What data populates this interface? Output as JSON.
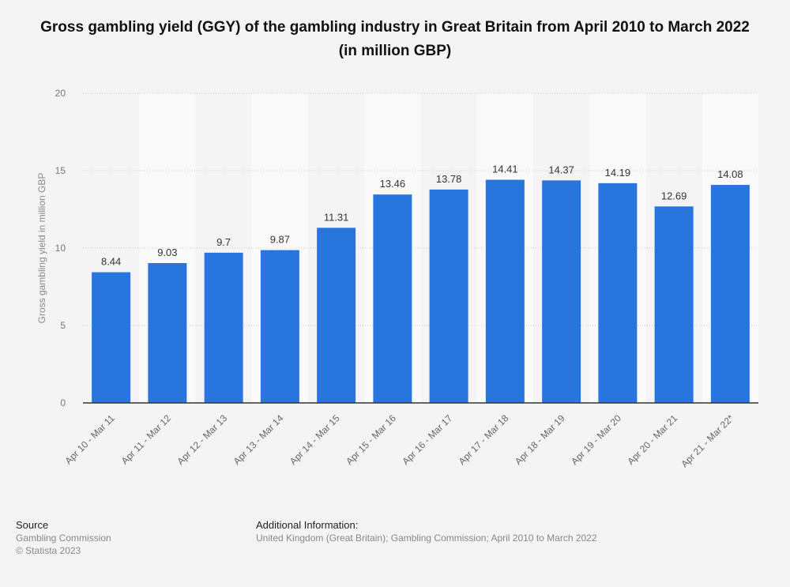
{
  "title": "Gross gambling yield (GGY) of the gambling industry in Great Britain from April 2010 to March 2022 (in million GBP)",
  "chart_data": {
    "type": "bar",
    "title": "Gross gambling yield (GGY) of the gambling industry in Great Britain from April 2010 to March 2022 (in million GBP)",
    "xlabel": "",
    "ylabel": "Gross gambling yield in million GBP",
    "ylim": [
      0,
      20
    ],
    "yticks": [
      0,
      5,
      10,
      15,
      20
    ],
    "grid": true,
    "bar_color": "#2876dd",
    "categories": [
      "Apr 10 - Mar 11",
      "Apr 11 - Mar 12",
      "Apr 12 - Mar 13",
      "Apr 13 - Mar 14",
      "Apr 14 - Mar 15",
      "Apr 15 - Mar 16",
      "Apr 16 - Mar 17",
      "Apr 17 - Mar 18",
      "Apr 18 - Mar 19",
      "Apr 19 - Mar 20",
      "Apr 20 - Mar 21",
      "Apr 21 - Mar 22*"
    ],
    "values": [
      8.44,
      9.03,
      9.7,
      9.87,
      11.31,
      13.46,
      13.78,
      14.41,
      14.37,
      14.19,
      12.69,
      14.08
    ],
    "labels": [
      "8.44",
      "9.03",
      "9.7",
      "9.87",
      "11.31",
      "13.46",
      "13.78",
      "14.41",
      "14.37",
      "14.19",
      "12.69",
      "14.08"
    ]
  },
  "footer": {
    "source_heading": "Source",
    "source_text": "Gambling Commission",
    "copyright": "© Statista 2023",
    "info_heading": "Additional Information:",
    "info_text": "United Kingdom (Great Britain); Gambling Commission; April 2010 to March 2022"
  }
}
